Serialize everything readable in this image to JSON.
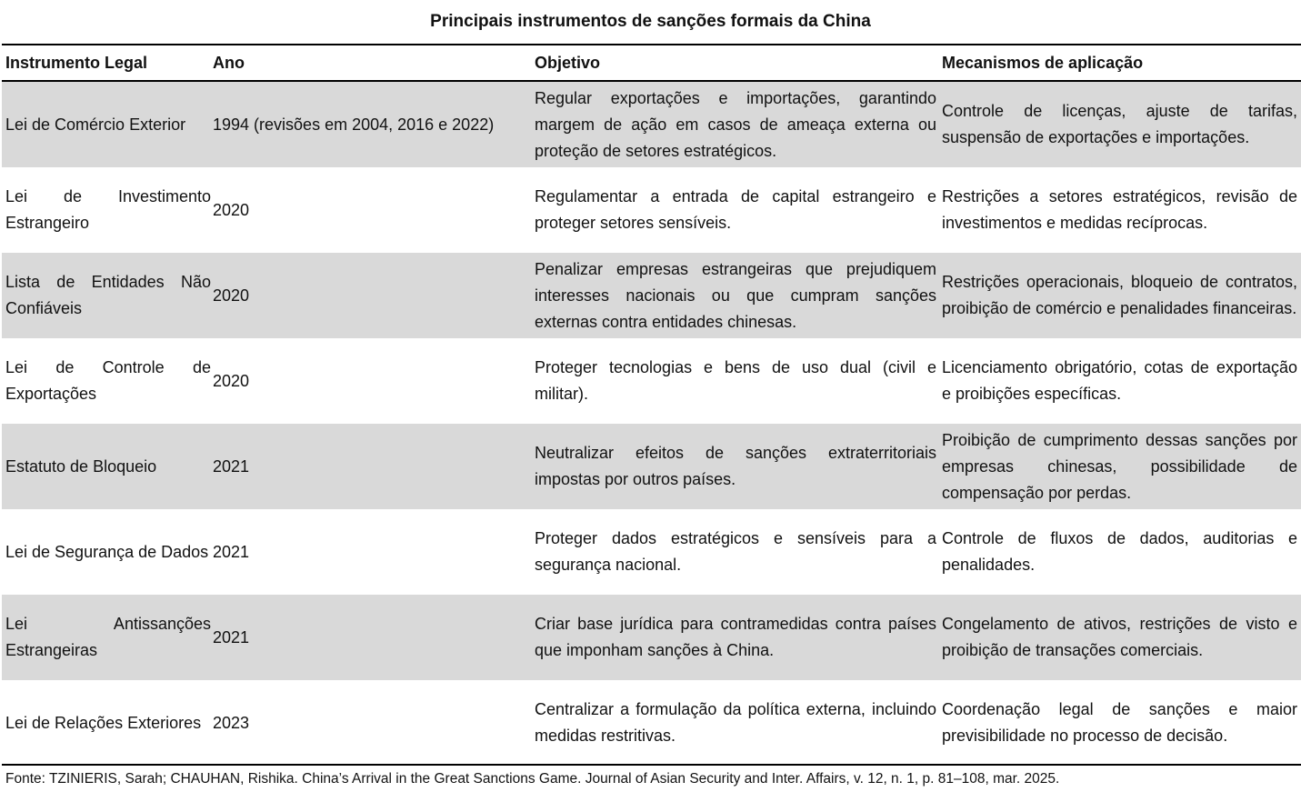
{
  "title": "Principais instrumentos de sanções formais da China",
  "table": {
    "header": [
      "Instrumento Legal",
      "Ano",
      "Objetivo",
      "Mecanismos de aplicação"
    ],
    "rows": [
      [
        "Lei de Comércio Exterior",
        "1994 (revisões em 2004, 2016 e 2022)",
        "Regular exportações e importações, garantindo margem de ação em casos de ameaça externa ou proteção de setores estratégicos.",
        "Controle de licenças, ajuste de tarifas, suspensão de exportações e importações."
      ],
      [
        "Lei de Investimento Estrangeiro",
        "2020",
        "Regulamentar a entrada de capital estrangeiro e proteger setores sensíveis.",
        "Restrições a setores estratégicos, revisão de investimentos e medidas recíprocas."
      ],
      [
        "Lista de Entidades Não Confiáveis",
        "2020",
        "Penalizar empresas estrangeiras que prejudiquem interesses nacionais ou que cumpram sanções externas contra entidades chinesas.",
        "Restrições operacionais, bloqueio de contratos, proibição de comércio e penalidades financeiras."
      ],
      [
        "Lei de Controle de Exportações",
        "2020",
        "Proteger tecnologias e bens de uso dual (civil e militar).",
        "Licenciamento obrigatório, cotas de exportação e proibições específicas."
      ],
      [
        "Estatuto de Bloqueio",
        "2021",
        "Neutralizar efeitos de sanções extraterritoriais impostas por outros países.",
        "Proibição de cumprimento dessas sanções por empresas chinesas, possibilidade de compensação por perdas."
      ],
      [
        "Lei de Segurança de Dados",
        "2021",
        "Proteger dados estratégicos e sensíveis para a segurança nacional.",
        "Controle de fluxos de dados, auditorias e penalidades."
      ],
      [
        "Lei Antissanções Estrangeiras",
        "2021",
        "Criar base jurídica para contramedidas contra países que imponham sanções à China.",
        "Congelamento de ativos, restrições de visto e proibição de transações comerciais."
      ],
      [
        "Lei de Relações Exteriores",
        "2023",
        "Centralizar a formulação da política externa, incluindo medidas restritivas.",
        "Coordenação legal de sanções e maior previsibilidade no processo de decisão."
      ]
    ]
  },
  "footnote": "Fonte: TZINIERIS, Sarah; CHAUHAN, Rishika. China’s Arrival in the Great Sanctions Game. Journal of Asian Security and Inter. Affairs, v. 12, n. 1, p. 81–108, mar. 2025."
}
